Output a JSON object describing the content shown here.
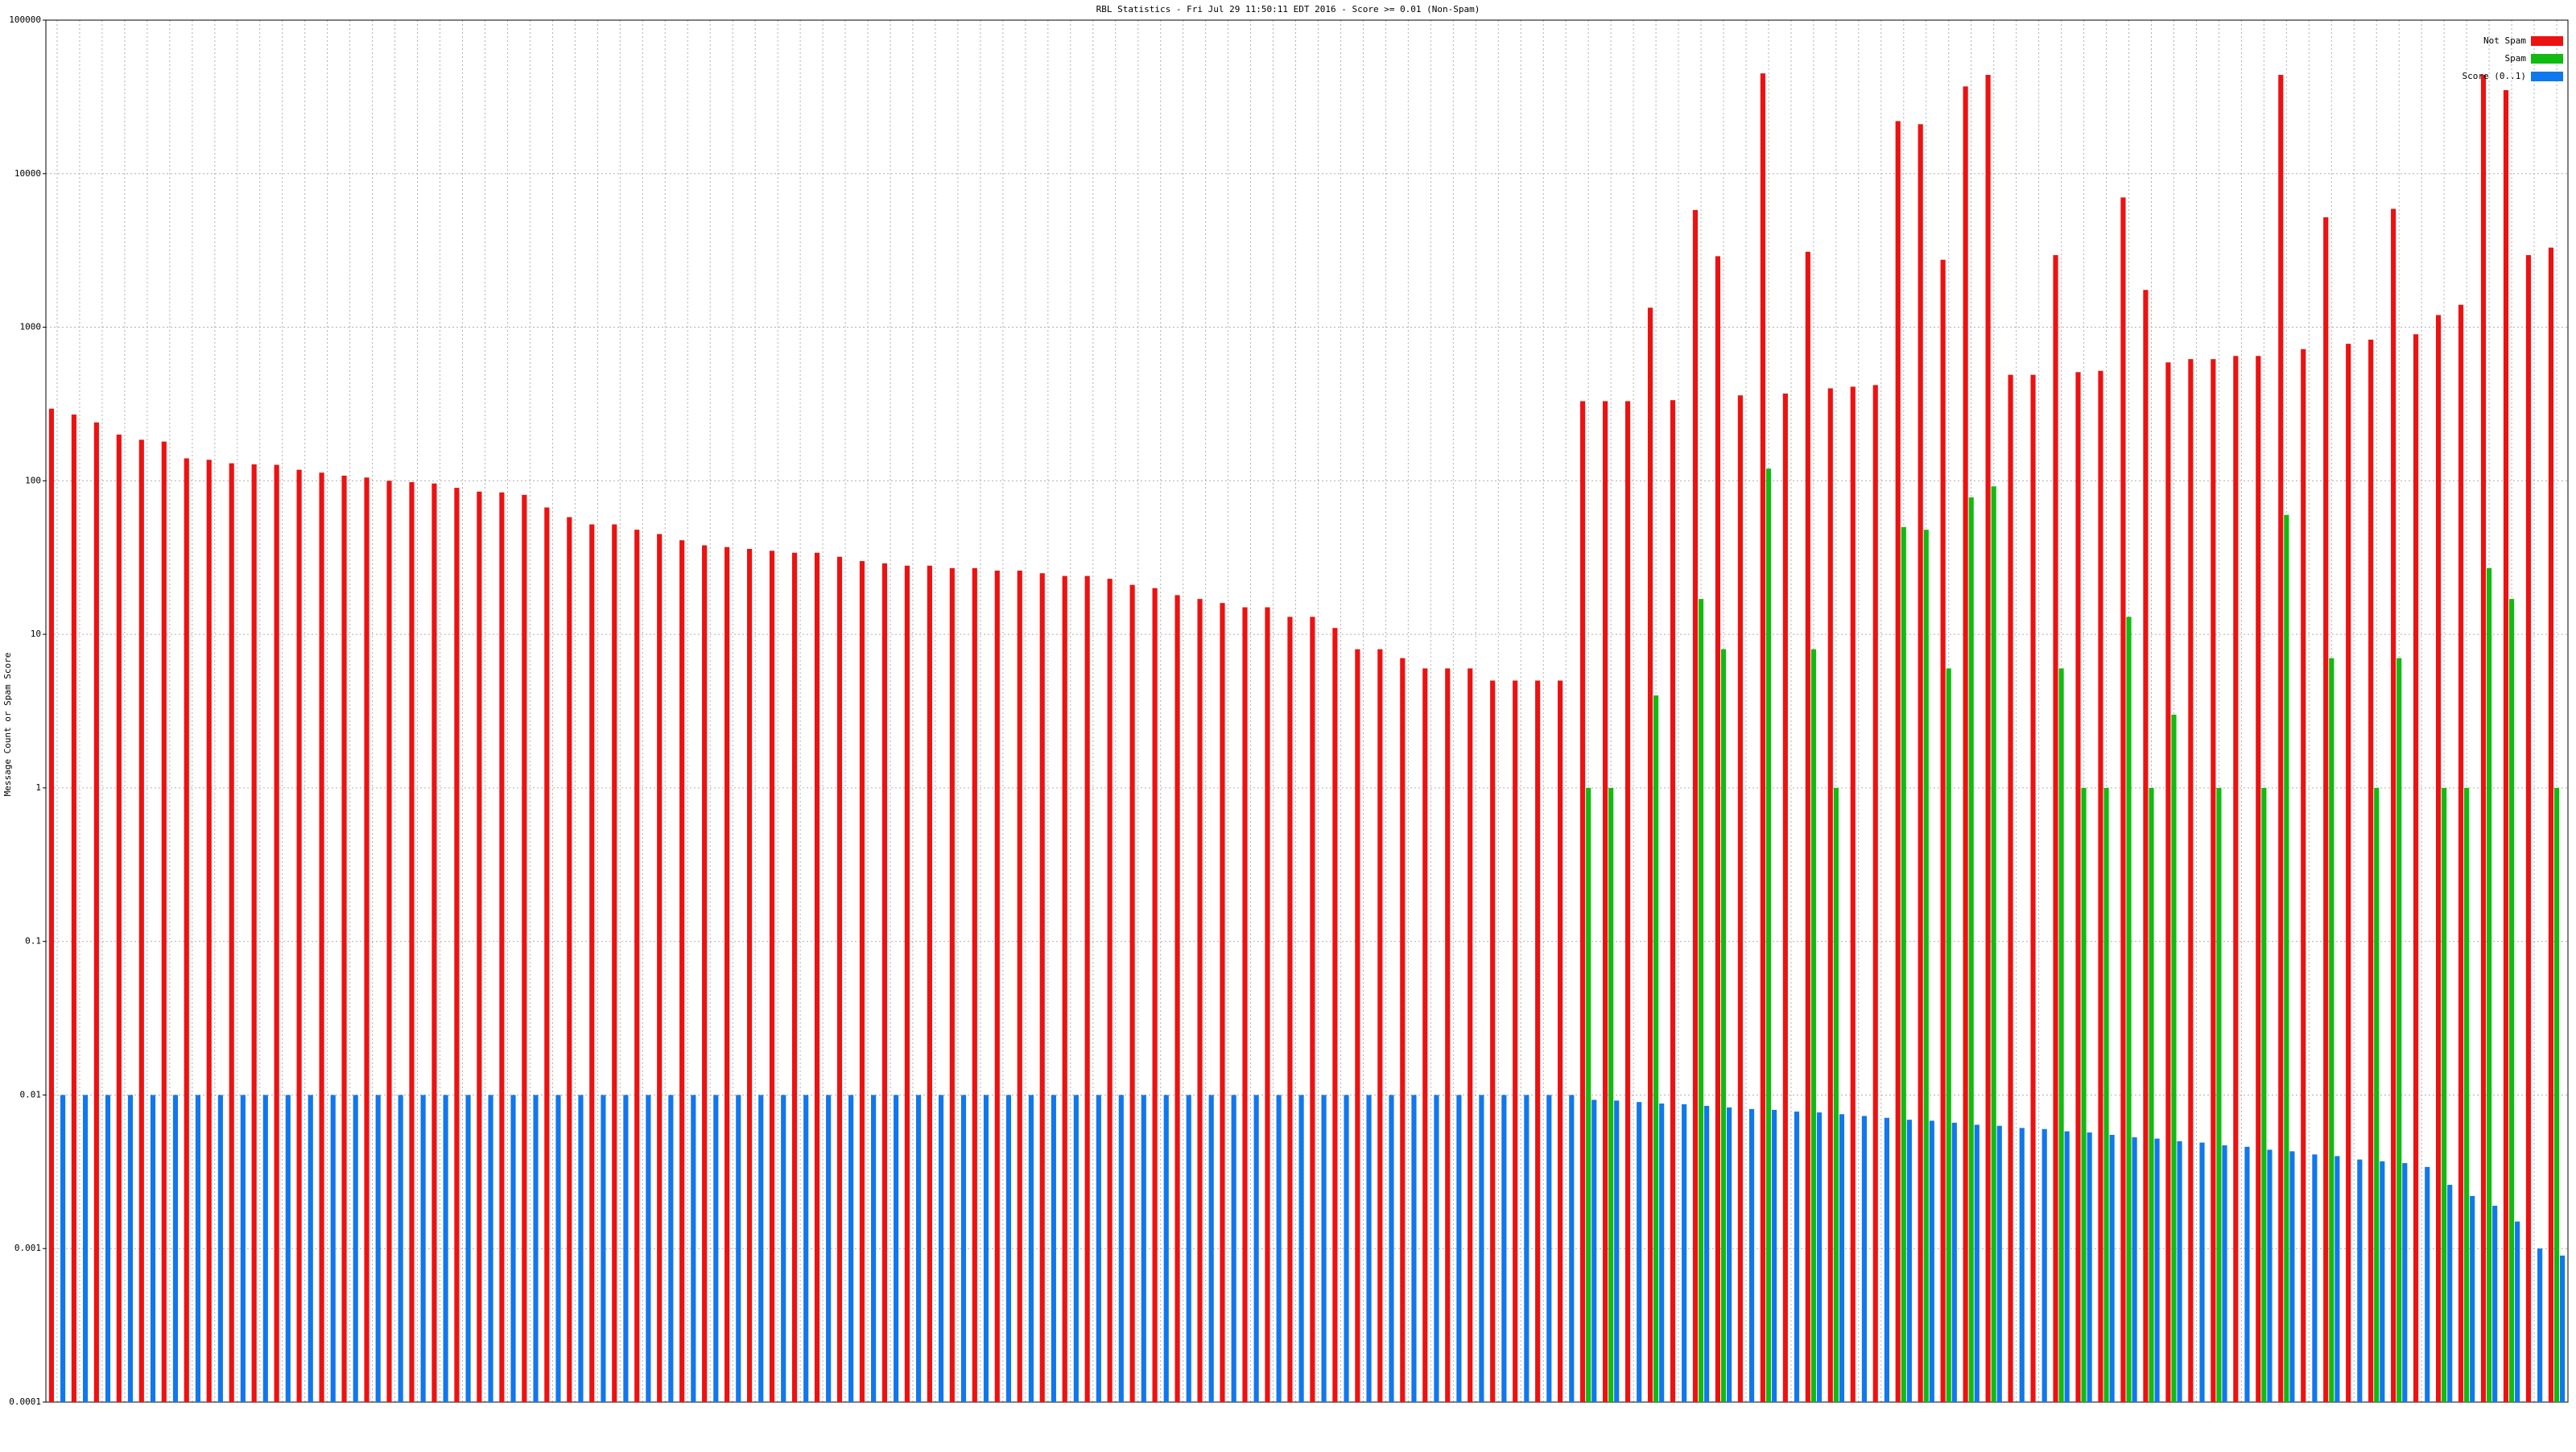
{
  "chart_data": {
    "type": "bar",
    "title": "RBL Statistics - Fri Jul 29 11:50:11 EDT 2016 - Score >= 0.01 (Non-Spam)",
    "y_label": "Message Count or Spam Score",
    "log_y": true,
    "grid": true,
    "legend": "top-right",
    "ylim": [
      0.0001,
      100000
    ],
    "yticks": [
      0.0001,
      0.001,
      0.01,
      0.1,
      1,
      10,
      100,
      1000,
      10000,
      100000
    ],
    "categories": [
      null,
      null,
      null,
      null,
      null,
      null,
      null,
      null,
      null,
      null,
      null,
      null,
      null,
      null,
      null,
      null,
      null,
      null,
      null,
      null,
      null,
      null,
      null,
      null,
      null,
      null,
      null,
      null,
      null,
      null,
      null,
      null,
      null,
      null,
      null,
      null,
      null,
      null,
      null,
      null,
      null,
      null,
      null,
      null,
      null,
      null,
      null,
      null,
      null,
      null,
      null,
      null,
      null,
      null,
      null,
      null,
      null,
      null,
      null,
      null,
      null,
      null,
      null,
      null,
      null,
      null,
      null,
      null,
      null,
      null,
      null,
      null,
      null,
      null,
      null,
      null,
      null,
      null,
      null,
      null,
      null,
      null,
      null,
      null,
      null,
      null,
      null,
      null,
      null,
      null,
      null,
      null,
      null,
      null,
      null,
      null,
      null,
      null,
      null,
      null,
      null,
      null,
      null,
      null,
      null,
      null,
      null,
      null,
      null,
      null,
      null,
      null
    ],
    "series": [
      {
        "name": "Not Spam",
        "color": "#ee1111",
        "values": [
          295,
          270,
          240,
          200,
          185,
          180,
          140,
          137,
          130,
          128,
          127,
          118,
          113,
          108,
          105,
          100,
          98,
          96,
          90,
          85,
          84,
          81,
          67,
          58,
          52,
          52,
          48,
          45,
          41,
          38,
          37,
          36,
          35,
          34,
          34,
          32,
          30,
          29,
          28,
          28,
          27,
          27,
          26,
          26,
          25,
          24,
          24,
          23,
          21,
          20,
          18,
          17,
          16,
          15,
          15,
          13,
          13,
          11,
          8,
          8,
          7,
          6,
          6,
          6,
          5,
          5,
          5,
          5,
          330,
          330,
          330,
          1340,
          335,
          5800,
          2900,
          360,
          45000,
          370,
          3100,
          400,
          410,
          420,
          22000,
          21000,
          2750,
          37000,
          44000,
          490,
          490,
          2950,
          510,
          520,
          7000,
          1750,
          590,
          620,
          620,
          650,
          650,
          44000,
          720,
          5200,
          780,
          830,
          5900,
          900,
          1200,
          1400,
          44000,
          35000,
          2950,
          3300
        ]
      },
      {
        "name": "Spam",
        "color": "#11bb11",
        "values": [
          null,
          null,
          null,
          null,
          null,
          null,
          null,
          null,
          null,
          null,
          null,
          null,
          null,
          null,
          null,
          null,
          null,
          null,
          null,
          null,
          null,
          null,
          null,
          null,
          null,
          null,
          null,
          null,
          null,
          null,
          null,
          null,
          null,
          null,
          null,
          null,
          null,
          null,
          null,
          null,
          null,
          null,
          null,
          null,
          null,
          null,
          null,
          null,
          null,
          null,
          null,
          null,
          null,
          null,
          null,
          null,
          null,
          null,
          null,
          null,
          null,
          null,
          null,
          null,
          null,
          null,
          null,
          null,
          1,
          1,
          null,
          4,
          null,
          17,
          8,
          null,
          120,
          null,
          8,
          1,
          null,
          null,
          50,
          48,
          6,
          78,
          92,
          null,
          null,
          6,
          1,
          1,
          13,
          1,
          3,
          null,
          1,
          null,
          1,
          60,
          null,
          7,
          null,
          1,
          7,
          null,
          1,
          1,
          27,
          17,
          null,
          1
        ]
      },
      {
        "name": "Score (0..1)",
        "color": "#1177ee",
        "values": [
          0.01,
          0.01,
          0.01,
          0.01,
          0.01,
          0.01,
          0.01,
          0.01,
          0.01,
          0.01,
          0.01,
          0.01,
          0.01,
          0.01,
          0.01,
          0.01,
          0.01,
          0.01,
          0.01,
          0.01,
          0.01,
          0.01,
          0.01,
          0.01,
          0.01,
          0.01,
          0.01,
          0.01,
          0.01,
          0.01,
          0.01,
          0.01,
          0.01,
          0.01,
          0.01,
          0.01,
          0.01,
          0.01,
          0.01,
          0.01,
          0.01,
          0.01,
          0.01,
          0.01,
          0.01,
          0.01,
          0.01,
          0.01,
          0.01,
          0.01,
          0.01,
          0.01,
          0.01,
          0.01,
          0.01,
          0.01,
          0.01,
          0.01,
          0.01,
          0.01,
          0.01,
          0.01,
          0.01,
          0.01,
          0.01,
          0.01,
          0.01,
          0.01,
          0.0093,
          0.0092,
          0.009,
          0.0088,
          0.0087,
          0.0085,
          0.0083,
          0.0081,
          0.008,
          0.0078,
          0.0077,
          0.0075,
          0.0073,
          0.0071,
          0.0069,
          0.0068,
          0.0066,
          0.0064,
          0.0063,
          0.0061,
          0.006,
          0.0058,
          0.0057,
          0.0055,
          0.0053,
          0.0052,
          0.005,
          0.0049,
          0.0047,
          0.0046,
          0.0044,
          0.0043,
          0.0041,
          0.004,
          0.0038,
          0.0037,
          0.0036,
          0.0034,
          0.0026,
          0.0022,
          0.0019,
          0.0015,
          0.001,
          0.0009
        ]
      }
    ]
  }
}
